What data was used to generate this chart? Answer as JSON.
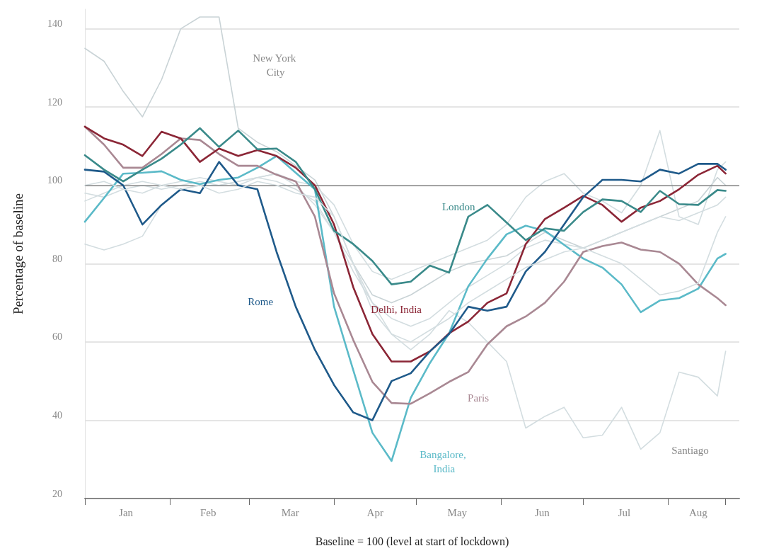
{
  "chart_data": {
    "type": "line",
    "xlabel": "Baseline = 100 (level at start of lockdown)",
    "ylabel": "Percentage of baseline",
    "x": [
      "--01-01",
      "--01-08",
      "--01-15",
      "--01-22",
      "--01-29",
      "--02-05",
      "--02-12",
      "--02-19",
      "--02-26",
      "--03-04",
      "--03-11",
      "--03-18",
      "--03-25",
      "--04-01",
      "--04-08",
      "--04-15",
      "--04-22",
      "--04-29",
      "--05-06",
      "--05-13",
      "--05-20",
      "--05-27",
      "--06-03",
      "--06-10",
      "--06-17",
      "--06-24",
      "--07-01",
      "--07-08",
      "--07-15",
      "--07-22",
      "--07-29",
      "--08-05",
      "--08-12",
      "--08-19",
      "--08-22"
    ],
    "series": [
      {
        "color": "#c9d3d6",
        "values": [
          135,
          131.7,
          124,
          117.5,
          127,
          140,
          143,
          143,
          114.6,
          111,
          108.6,
          105,
          101.4,
          92,
          80,
          72,
          70,
          72,
          75,
          78,
          80,
          81,
          82,
          85,
          88,
          86,
          84,
          86,
          88,
          90,
          92,
          94,
          96,
          102,
          100
        ]
      },
      {
        "color": "#3a8a8a",
        "values": [
          107.7,
          104,
          101,
          104,
          106.8,
          110.4,
          114.6,
          109.8,
          114,
          109.2,
          109.4,
          106,
          99,
          88.4,
          85,
          80.7,
          74.7,
          75.4,
          79.5,
          77.7,
          92,
          95,
          90.5,
          86,
          89,
          88.4,
          93.2,
          96.4,
          96,
          93.2,
          98.6,
          95.2,
          95,
          98.8,
          98.6
        ]
      },
      {
        "color": "#1f5a8a",
        "values": [
          104,
          103.5,
          100,
          90,
          95,
          99,
          98,
          106,
          100,
          99,
          83,
          69,
          58,
          49,
          42,
          40,
          50,
          52,
          57.6,
          62,
          69,
          68,
          69,
          78,
          83,
          90,
          97,
          101.4,
          101.4,
          101,
          104,
          103,
          105.5,
          105.5,
          104
        ]
      },
      {
        "color": "#8b2636",
        "values": [
          115,
          112,
          110.4,
          107.5,
          113.7,
          112,
          106,
          109.4,
          107.5,
          109,
          107.5,
          104.5,
          100,
          90,
          74,
          62,
          55,
          55,
          57.6,
          62.2,
          65.2,
          70,
          72.4,
          85,
          91.4,
          94.3,
          97.3,
          95,
          90.7,
          94.3,
          96,
          99,
          102.7,
          105,
          103
        ]
      },
      {
        "color": "#a98893",
        "values": [
          115,
          110.4,
          104.5,
          104.5,
          108,
          112,
          111.6,
          108,
          105,
          105,
          102.7,
          101,
          92,
          72.4,
          60.5,
          49.8,
          44.4,
          44.2,
          46.9,
          49.8,
          52.3,
          59.4,
          64,
          66.5,
          70,
          75.4,
          83,
          84.5,
          85.4,
          83.6,
          83,
          80,
          74.7,
          71.2,
          69.4
        ]
      },
      {
        "color": "#5bbac8",
        "values": [
          90.7,
          96.8,
          103,
          103.2,
          103.6,
          101.4,
          100.3,
          101.4,
          102,
          104.5,
          107.5,
          103.2,
          99,
          69,
          52.8,
          36.8,
          29.6,
          45.7,
          54.6,
          62.2,
          74.2,
          81.3,
          87.5,
          89.7,
          88.4,
          84.8,
          81.3,
          79,
          74.7,
          67.6,
          70.6,
          71.2,
          73.6,
          81.3,
          82.5
        ]
      },
      {
        "color": "#d3dde0",
        "values": [
          85,
          83.5,
          85,
          87,
          95,
          99,
          100,
          100,
          101,
          102,
          103,
          100,
          95,
          88,
          80,
          70,
          62,
          58,
          62,
          68,
          65,
          60,
          55,
          38,
          41,
          43.3,
          35.5,
          36.2,
          43.3,
          32.6,
          36.8,
          52.3,
          51,
          46.2,
          57.6
        ]
      },
      {
        "color": "#d3dde0",
        "values": [
          98,
          97,
          99,
          100,
          99,
          100,
          101,
          100,
          101,
          102,
          101,
          99,
          96,
          88,
          78,
          70,
          66,
          64,
          66,
          70,
          74,
          77,
          80,
          84,
          86,
          85,
          84,
          86,
          88,
          90,
          92,
          91,
          93,
          95,
          97
        ]
      },
      {
        "color": "#d3dde0",
        "values": [
          96,
          98,
          100,
          101,
          100,
          101,
          102,
          101,
          100,
          102,
          103,
          101,
          100,
          95,
          85,
          78,
          76,
          78,
          80,
          82,
          84,
          86,
          90,
          97,
          101,
          103,
          98,
          96,
          93,
          100,
          114,
          92,
          90,
          104,
          106
        ]
      },
      {
        "color": "#d3dde0",
        "values": [
          100,
          101,
          99,
          98,
          100,
          99,
          100,
          98,
          99,
          101,
          100,
          98,
          97,
          92,
          80,
          68,
          62,
          60,
          63,
          66,
          70,
          73,
          76,
          79,
          81,
          83,
          84,
          82,
          80,
          76,
          72,
          73,
          75,
          88,
          92
        ]
      }
    ],
    "annotations": [
      "New York City",
      "London",
      "Rome",
      "Delhi, India",
      "Paris",
      "Bangalore, India",
      "Santiago"
    ],
    "ref_lines": [
      {
        "axis": "y",
        "value": 100,
        "color": "#555555"
      }
    ],
    "xlim": [
      "--01-01",
      "--08-27"
    ],
    "xticks": [
      {
        "value": "--01-01",
        "label": null
      },
      {
        "value": "--01-16",
        "label": "Jan"
      },
      {
        "value": "--02-01",
        "label": null
      },
      {
        "value": "--02-15",
        "label": "Feb"
      },
      {
        "value": "--03-01",
        "label": null
      },
      {
        "value": "--03-16",
        "label": "Mar"
      },
      {
        "value": "--04-01",
        "label": null
      },
      {
        "value": "--04-16",
        "label": "Apr"
      },
      {
        "value": "--05-01",
        "label": null
      },
      {
        "value": "--05-16",
        "label": "May"
      },
      {
        "value": "--06-01",
        "label": null
      },
      {
        "value": "--06-16",
        "label": "Jun"
      },
      {
        "value": "--07-01",
        "label": null
      },
      {
        "value": "--07-16",
        "label": "Jul"
      },
      {
        "value": "--08-01",
        "label": null
      },
      {
        "value": "--08-12",
        "label": "Aug"
      },
      {
        "value": "--08-22",
        "label": null
      }
    ],
    "ylim": [
      20,
      145
    ],
    "yticks": [
      20,
      40,
      60,
      80,
      100,
      120,
      140
    ],
    "grid": "y",
    "marker": "none",
    "line_style": "solid"
  }
}
